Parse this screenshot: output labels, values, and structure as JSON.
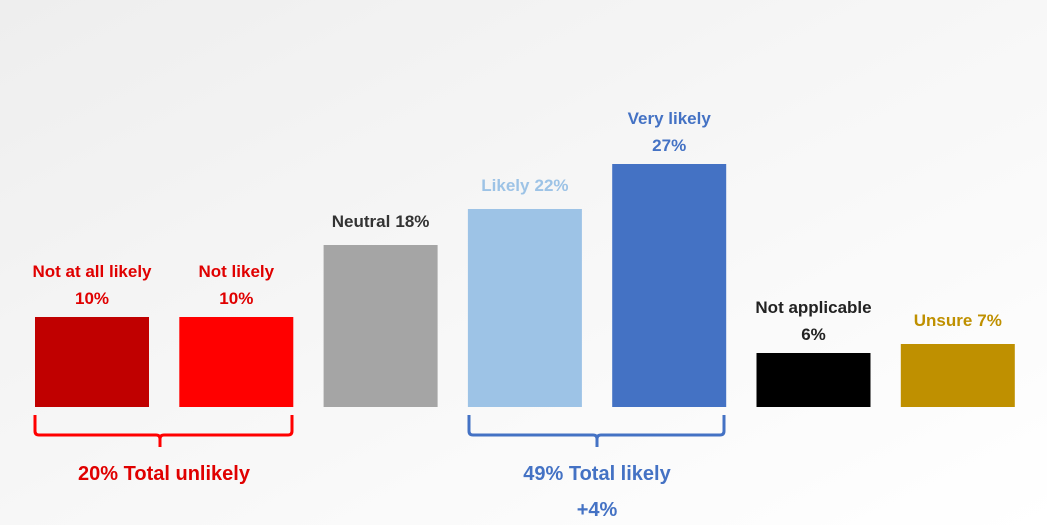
{
  "chart_data": {
    "type": "bar",
    "categories": [
      "Not at all likely",
      "Not likely",
      "Neutral",
      "Likely",
      "Very likely",
      "Not applicable",
      "Unsure"
    ],
    "values": [
      10,
      10,
      18,
      22,
      27,
      6,
      7
    ],
    "value_labels": [
      "10%",
      "10%",
      "18%",
      "22%",
      "27%",
      "6%",
      "7%"
    ],
    "colors": [
      "#c00000",
      "#ff0000",
      "#a5a5a5",
      "#9dc3e6",
      "#4472c4",
      "#000000",
      "#bf9000"
    ],
    "label_colors": [
      "#e00000",
      "#e00000",
      "#333333",
      "#9dc3e6",
      "#4472c4",
      "#222222",
      "#bf9000"
    ],
    "annotations": [
      "20% Total unlikely",
      "49% Total likely",
      "+4%"
    ]
  }
}
